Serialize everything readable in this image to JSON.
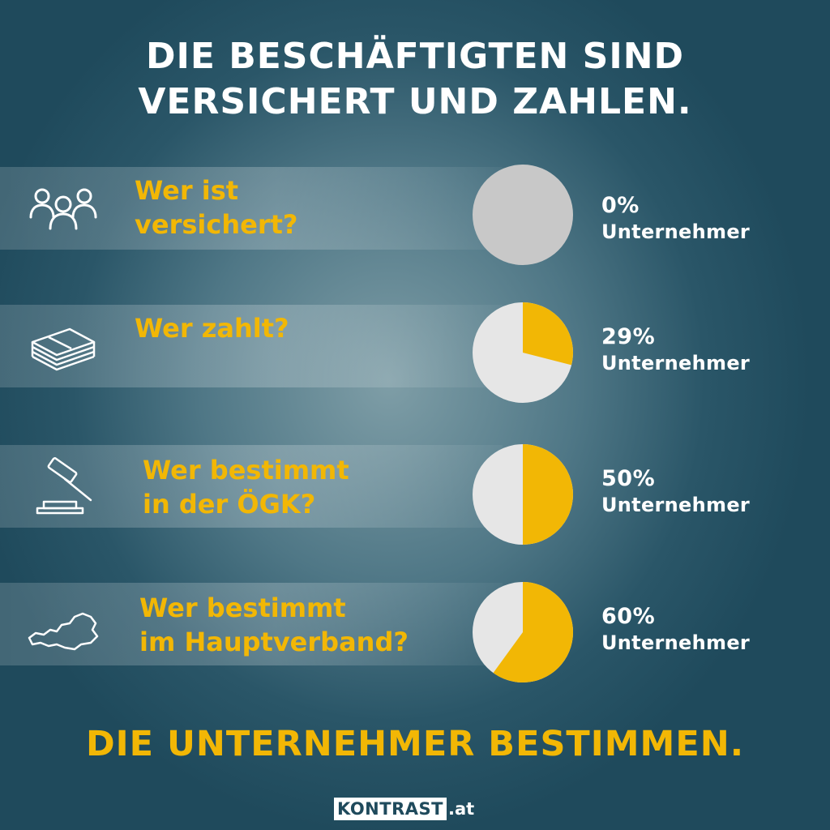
{
  "headline": {
    "line1": "DIE BESCHÄFTIGTEN SIND",
    "line2": "VERSICHERT UND ZAHLEN."
  },
  "rows": [
    {
      "icon": "people-icon",
      "question": [
        "Wer ist",
        "versichert?"
      ],
      "percent_text": "0%",
      "label": "Unternehmer"
    },
    {
      "icon": "money-stack-icon",
      "question": [
        "Wer zahlt?"
      ],
      "percent_text": "29%",
      "label": "Unternehmer"
    },
    {
      "icon": "gavel-icon",
      "question": [
        "Wer bestimmt",
        "in der ÖGK?"
      ],
      "percent_text": "50%",
      "label": "Unternehmer"
    },
    {
      "icon": "austria-map-icon",
      "question": [
        "Wer bestimmt",
        "im Hauptverband?"
      ],
      "percent_text": "60%",
      "label": "Unternehmer"
    }
  ],
  "chart_data": {
    "type": "pie",
    "categories": [
      "Wer ist versichert?",
      "Wer zahlt?",
      "Wer bestimmt in der ÖGK?",
      "Wer bestimmt im Hauptverband?"
    ],
    "series": [
      {
        "name": "Unternehmer",
        "values": [
          0,
          29,
          50,
          60
        ]
      }
    ],
    "unit": "%"
  },
  "colors": {
    "accent": "#f2b705",
    "pie_rest": "#e6e6e6",
    "pie_empty": "#c8c8c8",
    "text": "#ffffff",
    "background": "#1f4a5c"
  },
  "conclusion": "DIE UNTERNEHMER BESTIMMEN.",
  "logo": {
    "brand": "KONTRAST",
    "tld": ".at"
  }
}
